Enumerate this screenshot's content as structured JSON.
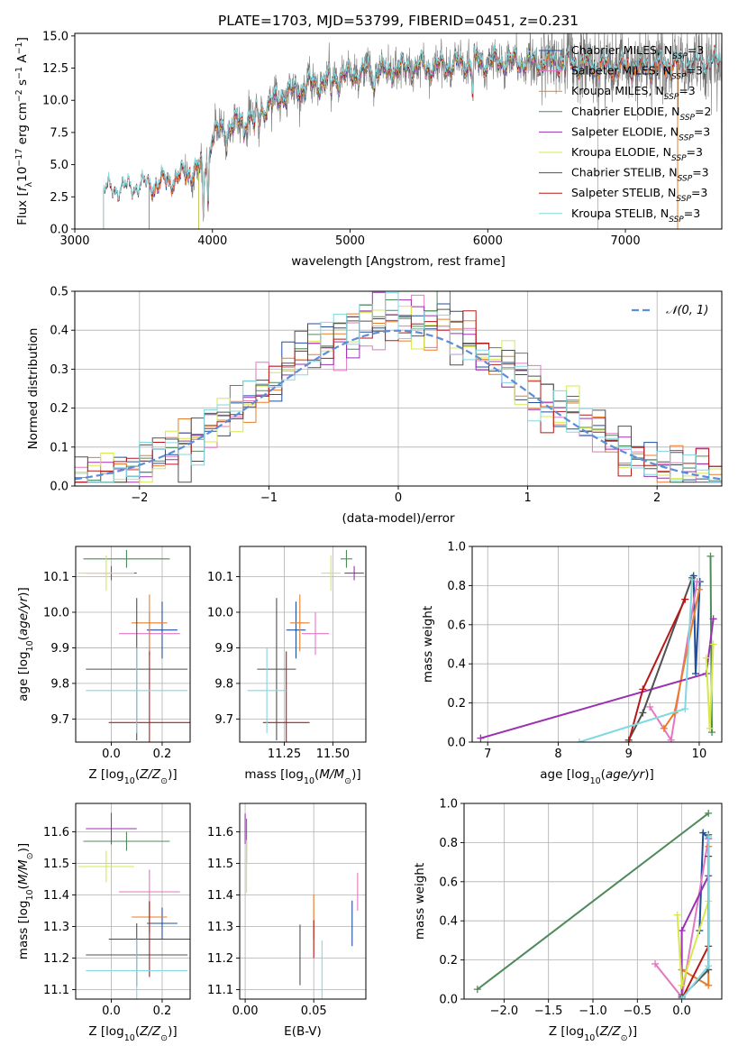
{
  "colors": {
    "Chabrier MILES": "#1f4e9c",
    "Salpeter MILES": "#e377c2",
    "Kroupa MILES": "#e87d2a",
    "Chabrier ELODIE": "#4f8a5a",
    "Salpeter ELODIE": "#9b30b0",
    "Kroupa ELODIE": "#d7e84a",
    "Chabrier STELIB": "#505050",
    "Salpeter STELIB": "#b81818",
    "Kroupa STELIB": "#80d8e0",
    "gauss": "#5a8ed8",
    "grid": "#b0b0b0"
  },
  "chart_data": [
    {
      "id": "spectrum",
      "type": "line",
      "title": "PLATE=1703, MJD=53799, FIBERID=0451, z=0.231",
      "xlabel": "wavelength [Angstrom, rest frame]",
      "ylabel": "Flux [f_λ 10^−17 erg cm^−2 s^−1 A^−1]",
      "xlim": [
        3000,
        7700
      ],
      "ylim": [
        0,
        15.2
      ],
      "xticks": [
        "3000",
        "4000",
        "5000",
        "6000",
        "7000"
      ],
      "yticks": [
        "0.0",
        "2.5",
        "5.0",
        "7.5",
        "10.0",
        "12.5",
        "15.0"
      ],
      "grid": false,
      "legend_position": "top-right",
      "legend": [
        {
          "label": "Chabrier MILES, N",
          "sub": "SSP",
          "tail": "=3"
        },
        {
          "label": "Salpeter MILES, N",
          "sub": "SSP",
          "tail": "=3"
        },
        {
          "label": "Kroupa MILES, N",
          "sub": "SSP",
          "tail": "=3"
        },
        {
          "label": "Chabrier ELODIE, N",
          "sub": "SSP",
          "tail": "=2"
        },
        {
          "label": "Salpeter ELODIE, N",
          "sub": "SSP",
          "tail": "=3"
        },
        {
          "label": "Kroupa ELODIE, N",
          "sub": "SSP",
          "tail": "=3"
        },
        {
          "label": "Chabrier STELIB, N",
          "sub": "SSP",
          "tail": "=3"
        },
        {
          "label": "Salpeter STELIB, N",
          "sub": "SSP",
          "tail": "=3"
        },
        {
          "label": "Kroupa STELIB, N",
          "sub": "SSP",
          "tail": "=3"
        }
      ],
      "continuum": [
        [
          3210,
          2.9
        ],
        [
          3400,
          3.1
        ],
        [
          3600,
          3.5
        ],
        [
          3800,
          4.2
        ],
        [
          3950,
          5.0
        ],
        [
          4000,
          7.3
        ],
        [
          4300,
          8.9
        ],
        [
          4500,
          10.3
        ],
        [
          4700,
          11.2
        ],
        [
          4900,
          11.7
        ],
        [
          5100,
          12.2
        ],
        [
          5300,
          12.4
        ],
        [
          5500,
          12.6
        ],
        [
          5700,
          12.7
        ],
        [
          5900,
          12.9
        ],
        [
          6100,
          13.0
        ],
        [
          6300,
          13.0
        ],
        [
          6500,
          13.0
        ],
        [
          6800,
          12.7
        ],
        [
          7000,
          12.5
        ],
        [
          7200,
          12.7
        ],
        [
          7400,
          12.8
        ],
        [
          7700,
          12.9
        ]
      ],
      "absorption": [
        [
          3934,
          4.5
        ],
        [
          3969,
          3.8
        ],
        [
          4102,
          1.2
        ],
        [
          4227,
          1.0
        ],
        [
          4304,
          1.8
        ],
        [
          4340,
          1.2
        ],
        [
          4861,
          1.1
        ],
        [
          5175,
          1.6
        ],
        [
          5270,
          0.9
        ],
        [
          5890,
          2.4
        ],
        [
          6563,
          0.6
        ]
      ],
      "model_ranges": {
        "MILES": [
          3540,
          7380
        ],
        "ELODIE": [
          3900,
          6800
        ],
        "STELIB": [
          3210,
          7700
        ]
      },
      "data_range": [
        3800,
        7700
      ]
    },
    {
      "id": "residuals",
      "type": "step",
      "xlabel": "(data-model)/error",
      "ylabel": "Normed distribution",
      "xlim": [
        -2.5,
        2.5
      ],
      "ylim": [
        0,
        0.5
      ],
      "xticks": [
        "−2",
        "−1",
        "0",
        "1",
        "2"
      ],
      "yticks": [
        "0.0",
        "0.1",
        "0.2",
        "0.3",
        "0.4",
        "0.5"
      ],
      "grid": true,
      "legend_position": "top-right",
      "gauss_label": "𝒩(0, 1)",
      "bin_width": 0.1
    },
    {
      "id": "age_vs_Z",
      "type": "errorbar",
      "xlabel": "Z [log10(Z/Z⊙)]",
      "ylabel": "age  [log10(age/yr)]",
      "xlim": [
        -0.14,
        0.31
      ],
      "ylim": [
        9.635,
        10.185
      ],
      "xticks": [
        "0.0",
        "0.2"
      ],
      "xtick_values": [
        0,
        0.2
      ],
      "yticks": [
        "9.7",
        "9.8",
        "9.9",
        "10.0",
        "10.1"
      ],
      "ytick_values": [
        9.7,
        9.8,
        9.9,
        10.0,
        10.1
      ],
      "grid": true
    },
    {
      "id": "age_vs_mass",
      "type": "errorbar",
      "xlabel": "mass [log10(M/M⊙)]",
      "xlim": [
        11.02,
        11.67
      ],
      "ylim": [
        9.635,
        10.185
      ],
      "xticks": [
        "11.25",
        "11.50"
      ],
      "xtick_values": [
        11.25,
        11.5
      ],
      "yticks": [
        "9.7",
        "9.8",
        "9.9",
        "10.0",
        "10.1"
      ],
      "ytick_values": [
        9.7,
        9.8,
        9.9,
        10.0,
        10.1
      ],
      "grid": true
    },
    {
      "id": "weight_vs_age",
      "type": "line",
      "xlabel": "age  [log10(age/yr)]",
      "ylabel": "mass weight",
      "xlim": [
        6.78,
        10.32
      ],
      "ylim": [
        0,
        1.0
      ],
      "xticks": [
        "7",
        "8",
        "9",
        "10"
      ],
      "xtick_values": [
        7,
        8,
        9,
        10
      ],
      "yticks": [
        "0.0",
        "0.2",
        "0.4",
        "0.6",
        "0.8",
        "1.0"
      ],
      "ytick_values": [
        0,
        0.2,
        0.4,
        0.6,
        0.8,
        1.0
      ],
      "grid": true
    },
    {
      "id": "mass_vs_Z",
      "type": "errorbar",
      "xlabel": "Z [log10(Z/Z⊙)]",
      "ylabel": "mass [log10(M/M⊙)]",
      "xlim": [
        -0.14,
        0.31
      ],
      "ylim": [
        11.07,
        11.69
      ],
      "xticks": [
        "0.0",
        "0.2"
      ],
      "xtick_values": [
        0,
        0.2
      ],
      "yticks": [
        "11.1",
        "11.2",
        "11.3",
        "11.4",
        "11.5",
        "11.6"
      ],
      "ytick_values": [
        11.1,
        11.2,
        11.3,
        11.4,
        11.5,
        11.6
      ],
      "grid": true
    },
    {
      "id": "mass_vs_ebv",
      "type": "errorbar",
      "xlabel": "E(B-V)",
      "xlim": [
        -0.004,
        0.088
      ],
      "ylim": [
        11.07,
        11.69
      ],
      "xticks": [
        "0.00",
        "0.05"
      ],
      "xtick_values": [
        0,
        0.05
      ],
      "yticks": [
        "11.1",
        "11.2",
        "11.3",
        "11.4",
        "11.5",
        "11.6"
      ],
      "ytick_values": [
        11.1,
        11.2,
        11.3,
        11.4,
        11.5,
        11.6
      ],
      "grid": true
    },
    {
      "id": "weight_vs_Z",
      "type": "line",
      "xlabel": "Z [log10(Z/Z⊙)]",
      "ylabel": "mass weight",
      "xlim": [
        -2.45,
        0.45
      ],
      "ylim": [
        0,
        1.0
      ],
      "xticks": [
        "−2.0",
        "−1.5",
        "−1.0",
        "−0.5",
        "0.0"
      ],
      "xtick_values": [
        -2.0,
        -1.5,
        -1.0,
        -0.5,
        0.0
      ],
      "yticks": [
        "0.0",
        "0.2",
        "0.4",
        "0.6",
        "0.8",
        "1.0"
      ],
      "ytick_values": [
        0,
        0.2,
        0.4,
        0.6,
        0.8,
        1.0
      ],
      "grid": true
    }
  ],
  "fits": [
    {
      "name": "Chabrier MILES",
      "Z": [
        0.2,
        0.24,
        0.3
      ],
      "age": [
        9.95,
        9.92,
        10.01
      ],
      "w": [
        0.35,
        0.85,
        0.82
      ],
      "Zcen": 0.2,
      "Zerr": 0.06,
      "agec": 9.95,
      "agee": 0.08,
      "mass": 11.31,
      "masse": 0.05,
      "ebv": 0.078,
      "ebve": 0.06
    },
    {
      "name": "Salpeter MILES",
      "Z": [
        -0.3,
        0.0,
        0.3
      ],
      "age": [
        9.3,
        9.6,
        9.97
      ],
      "w": [
        0.18,
        0.01,
        0.82
      ],
      "Zcen": 0.15,
      "Zerr": 0.12,
      "agec": 9.94,
      "agee": 0.06,
      "mass": 11.41,
      "masse": 0.07,
      "ebv": 0.082,
      "ebve": 0.05
    },
    {
      "name": "Kroupa MILES",
      "Z": [
        0.3,
        0.0,
        0.3
      ],
      "age": [
        9.5,
        9.65,
        10.0
      ],
      "w": [
        0.07,
        0.15,
        0.78
      ],
      "Zcen": 0.15,
      "Zerr": 0.07,
      "agec": 9.97,
      "agee": 0.08,
      "mass": 11.33,
      "masse": 0.05,
      "ebv": 0.05,
      "ebve": 0.06
    },
    {
      "name": "Chabrier ELODIE",
      "Z": [
        -2.3,
        0.3
      ],
      "age": [
        10.18,
        10.16
      ],
      "w": [
        0.05,
        0.95
      ],
      "Zcen": 0.06,
      "Zerr": 0.17,
      "agec": 10.15,
      "agee": 0.025,
      "mass": 11.57,
      "masse": 0.03,
      "ebv": 0.001,
      "ebve": 0.06
    },
    {
      "name": "Salpeter ELODIE",
      "Z": [
        0.0,
        0.0,
        0.3
      ],
      "age": [
        6.9,
        10.1,
        10.2
      ],
      "w": [
        0.02,
        0.35,
        0.63
      ],
      "Zcen": -0.0,
      "Zerr": 0.1,
      "agec": 10.11,
      "agee": 0.02,
      "mass": 11.61,
      "masse": 0.05,
      "ebv": 0.0,
      "ebve": 0.04
    },
    {
      "name": "Kroupa ELODIE",
      "Z": [
        -0.05,
        0.0,
        0.3
      ],
      "age": [
        10.1,
        10.15,
        10.2
      ],
      "w": [
        0.43,
        0.07,
        0.5
      ],
      "Zcen": -0.02,
      "Zerr": 0.11,
      "agec": 10.11,
      "agee": 0.05,
      "mass": 11.49,
      "masse": 0.05,
      "ebv": 0.001,
      "ebve": 0.07
    },
    {
      "name": "Chabrier STELIB",
      "Z": [
        0.3,
        0.0,
        0.3
      ],
      "age": [
        9.2,
        9.0,
        9.9
      ],
      "w": [
        0.15,
        0.01,
        0.84
      ],
      "Zcen": 0.1,
      "Zerr": 0.2,
      "agec": 9.84,
      "agee": 0.2,
      "mass": 11.21,
      "masse": 0.1,
      "ebv": 0.04,
      "ebve": 0.08
    },
    {
      "name": "Salpeter STELIB",
      "Z": [
        0.3,
        0.0,
        0.3
      ],
      "age": [
        9.2,
        9.0,
        9.8
      ],
      "w": [
        0.27,
        0.0,
        0.73
      ],
      "Zcen": 0.15,
      "Zerr": 0.16,
      "agec": 9.69,
      "agee": 0.2,
      "mass": 11.26,
      "masse": 0.12,
      "ebv": 0.05,
      "ebve": 0.05
    },
    {
      "name": "Kroupa STELIB",
      "Z": [
        0.3,
        0.0,
        0.3
      ],
      "age": [
        9.8,
        8.3,
        9.9
      ],
      "w": [
        0.17,
        0.0,
        0.83
      ],
      "Zcen": 0.1,
      "Zerr": 0.2,
      "agec": 9.78,
      "agee": 0.12,
      "mass": 11.16,
      "masse": 0.1,
      "ebv": 0.056,
      "ebve": 0.08
    }
  ]
}
